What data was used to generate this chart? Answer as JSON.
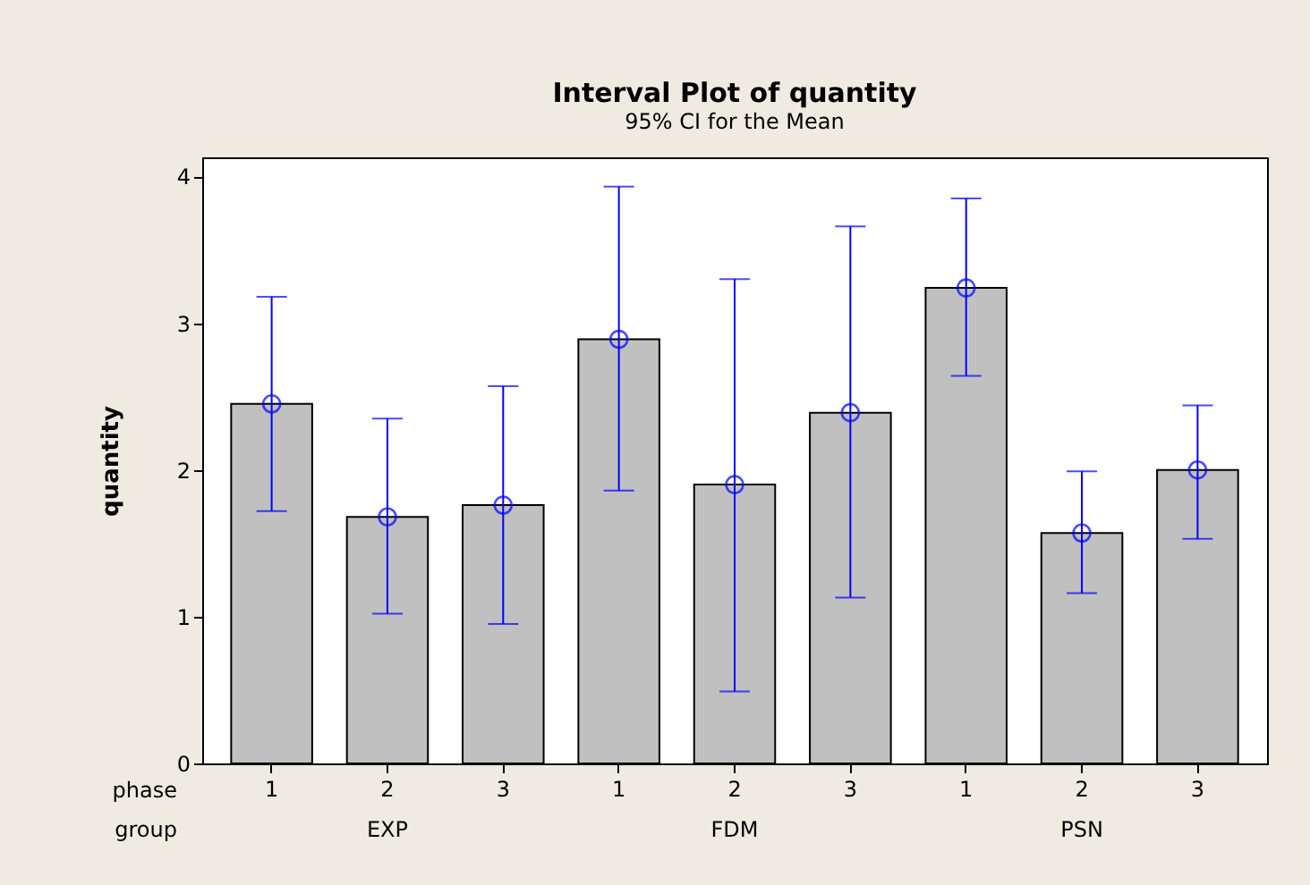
{
  "chart_data": {
    "type": "bar",
    "title": "Interval Plot of quantity",
    "subtitle": "95% CI for the Mean",
    "ylabel": "quantity",
    "categories": [
      "1",
      "2",
      "3",
      "1",
      "2",
      "3",
      "1",
      "2",
      "3"
    ],
    "series": [
      {
        "color": "#c0c0c0",
        "values": [
          2.45,
          1.68,
          1.76,
          2.89,
          1.9,
          2.39,
          3.24,
          1.57,
          2.0
        ]
      },
      {
        "type": "scatter",
        "color": "#0000ff",
        "marker": "circle",
        "values": [
          2.45,
          1.68,
          1.76,
          2.89,
          1.9,
          2.39,
          3.24,
          1.57,
          2.0
        ],
        "errors": [
          [
            1.72,
            3.18
          ],
          [
            1.02,
            2.35
          ],
          [
            0.95,
            2.57
          ],
          [
            1.86,
            3.93
          ],
          [
            0.49,
            3.3
          ],
          [
            1.13,
            3.66
          ],
          [
            2.64,
            3.85
          ],
          [
            1.16,
            1.99
          ],
          [
            1.53,
            2.44
          ]
        ]
      }
    ],
    "annotations": [
      "phase",
      "group",
      "EXP",
      "FDM",
      "PSN"
    ],
    "ylim": [
      0,
      4.13
    ],
    "yticks": [
      0,
      1,
      2,
      3,
      4
    ],
    "grid": false
  }
}
